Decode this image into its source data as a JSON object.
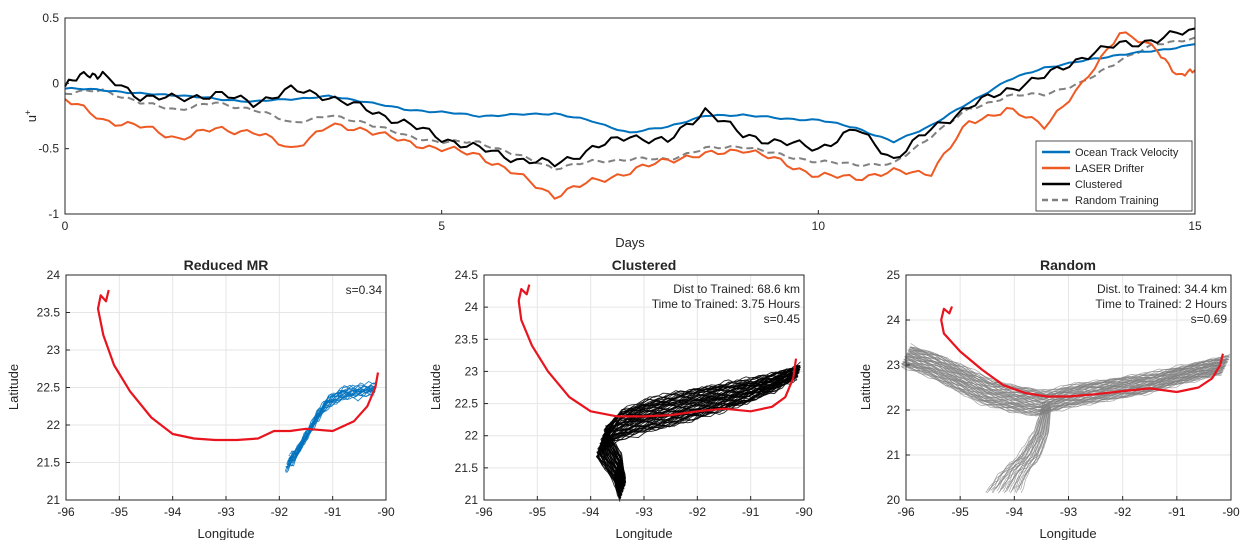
{
  "chart_data": [
    {
      "type": "line",
      "xlabel": "Days",
      "ylabel": "u",
      "ylabel_sup": "+",
      "xlim": [
        0,
        15
      ],
      "ylim": [
        -1,
        0.5
      ],
      "xticks": [
        0,
        5,
        10,
        15
      ],
      "yticks": [
        -1,
        -0.5,
        0,
        0.5
      ],
      "grid": false,
      "legend_position": "bottom-right",
      "series": [
        {
          "name": "Ocean Track Velocity",
          "color": "#0072BD",
          "dash": "solid",
          "points": [
            [
              0,
              -0.04
            ],
            [
              0.5,
              -0.05
            ],
            [
              1,
              -0.08
            ],
            [
              1.5,
              -0.09
            ],
            [
              2,
              -0.12
            ],
            [
              2.5,
              -0.14
            ],
            [
              3,
              -0.12
            ],
            [
              3.5,
              -0.1
            ],
            [
              4,
              -0.14
            ],
            [
              4.5,
              -0.2
            ],
            [
              5,
              -0.22
            ],
            [
              5.5,
              -0.25
            ],
            [
              6,
              -0.24
            ],
            [
              6.5,
              -0.23
            ],
            [
              7,
              -0.29
            ],
            [
              7.5,
              -0.38
            ],
            [
              8,
              -0.33
            ],
            [
              8.5,
              -0.25
            ],
            [
              9,
              -0.24
            ],
            [
              9.5,
              -0.27
            ],
            [
              10,
              -0.28
            ],
            [
              10.5,
              -0.34
            ],
            [
              11,
              -0.45
            ],
            [
              11.5,
              -0.32
            ],
            [
              12,
              -0.15
            ],
            [
              12.5,
              0.02
            ],
            [
              13,
              0.12
            ],
            [
              13.5,
              0.17
            ],
            [
              14,
              0.22
            ],
            [
              14.5,
              0.25
            ],
            [
              15,
              0.3
            ]
          ]
        },
        {
          "name": "LASER Drifter",
          "color": "#EE5A24",
          "dash": "solid",
          "points": [
            [
              0,
              -0.12
            ],
            [
              0.5,
              -0.28
            ],
            [
              1,
              -0.33
            ],
            [
              1.5,
              -0.42
            ],
            [
              2,
              -0.35
            ],
            [
              2.5,
              -0.37
            ],
            [
              3,
              -0.5
            ],
            [
              3.5,
              -0.33
            ],
            [
              4,
              -0.35
            ],
            [
              4.5,
              -0.45
            ],
            [
              5,
              -0.5
            ],
            [
              5.5,
              -0.55
            ],
            [
              6,
              -0.7
            ],
            [
              6.5,
              -0.86
            ],
            [
              7,
              -0.75
            ],
            [
              7.5,
              -0.68
            ],
            [
              8,
              -0.58
            ],
            [
              8.5,
              -0.55
            ],
            [
              9,
              -0.5
            ],
            [
              9.5,
              -0.6
            ],
            [
              10,
              -0.71
            ],
            [
              10.5,
              -0.72
            ],
            [
              11,
              -0.68
            ],
            [
              11.5,
              -0.68
            ],
            [
              12,
              -0.3
            ],
            [
              12.5,
              -0.2
            ],
            [
              13,
              -0.32
            ],
            [
              13.5,
              -0.02
            ],
            [
              14,
              0.4
            ],
            [
              14.5,
              0.25
            ],
            [
              14.8,
              0.05
            ],
            [
              15,
              0.1
            ]
          ]
        },
        {
          "name": "Clustered",
          "color": "#000000",
          "dash": "solid",
          "points": [
            [
              0,
              -0.02
            ],
            [
              0.3,
              0.08
            ],
            [
              0.5,
              0.05
            ],
            [
              1,
              -0.1
            ],
            [
              1.5,
              -0.12
            ],
            [
              2,
              -0.08
            ],
            [
              2.5,
              -0.15
            ],
            [
              3,
              -0.05
            ],
            [
              3.5,
              -0.1
            ],
            [
              4,
              -0.2
            ],
            [
              4.5,
              -0.3
            ],
            [
              5,
              -0.42
            ],
            [
              5.5,
              -0.5
            ],
            [
              6,
              -0.58
            ],
            [
              6.5,
              -0.62
            ],
            [
              7,
              -0.5
            ],
            [
              7.5,
              -0.4
            ],
            [
              8,
              -0.45
            ],
            [
              8.5,
              -0.2
            ],
            [
              9,
              -0.4
            ],
            [
              9.5,
              -0.45
            ],
            [
              10,
              -0.5
            ],
            [
              10.5,
              -0.35
            ],
            [
              11,
              -0.58
            ],
            [
              11.5,
              -0.35
            ],
            [
              12,
              -0.18
            ],
            [
              12.5,
              -0.05
            ],
            [
              13,
              0.05
            ],
            [
              13.5,
              0.2
            ],
            [
              14,
              0.3
            ],
            [
              14.5,
              0.33
            ],
            [
              15,
              0.42
            ]
          ]
        },
        {
          "name": "Random Training",
          "color": "#808080",
          "dash": "dashed",
          "points": [
            [
              0,
              -0.08
            ],
            [
              0.5,
              -0.05
            ],
            [
              1,
              -0.15
            ],
            [
              1.5,
              -0.2
            ],
            [
              2,
              -0.15
            ],
            [
              2.5,
              -0.2
            ],
            [
              3,
              -0.3
            ],
            [
              3.5,
              -0.25
            ],
            [
              4,
              -0.3
            ],
            [
              4.5,
              -0.4
            ],
            [
              5,
              -0.45
            ],
            [
              5.5,
              -0.45
            ],
            [
              6,
              -0.55
            ],
            [
              6.5,
              -0.65
            ],
            [
              7,
              -0.6
            ],
            [
              7.5,
              -0.58
            ],
            [
              8,
              -0.58
            ],
            [
              8.5,
              -0.5
            ],
            [
              9,
              -0.48
            ],
            [
              9.5,
              -0.55
            ],
            [
              10,
              -0.6
            ],
            [
              10.5,
              -0.62
            ],
            [
              11,
              -0.62
            ],
            [
              11.5,
              -0.4
            ],
            [
              12,
              -0.2
            ],
            [
              12.5,
              -0.1
            ],
            [
              13,
              -0.08
            ],
            [
              13.5,
              0.0
            ],
            [
              14,
              0.18
            ],
            [
              14.5,
              0.3
            ],
            [
              15,
              0.35
            ]
          ]
        }
      ]
    },
    {
      "type": "line",
      "title": "Reduced MR",
      "xlabel": "Longitude",
      "ylabel": "Latitude",
      "xlim": [
        -96,
        -90
      ],
      "ylim": [
        21,
        24
      ],
      "xticks": [
        -96,
        -95,
        -94,
        -93,
        -92,
        -91,
        -90
      ],
      "yticks": [
        21,
        21.5,
        22,
        22.5,
        23,
        23.5,
        24
      ],
      "grid": true,
      "annotations": [
        "s=0.34"
      ],
      "ensemble": {
        "color": "#0072BD",
        "count": 18,
        "start": [
          -91.85,
          21.48
        ],
        "spread": [
          0.15,
          0.1
        ]
      },
      "ensemble_centerline": [
        [
          -91.85,
          21.48
        ],
        [
          -91.7,
          21.6
        ],
        [
          -91.5,
          21.85
        ],
        [
          -91.3,
          22.1
        ],
        [
          -91.1,
          22.3
        ],
        [
          -90.8,
          22.42
        ],
        [
          -90.5,
          22.45
        ],
        [
          -90.2,
          22.48
        ]
      ],
      "red_track": [
        [
          -95.2,
          23.8
        ],
        [
          -95.25,
          23.65
        ],
        [
          -95.35,
          23.73
        ],
        [
          -95.4,
          23.55
        ],
        [
          -95.3,
          23.2
        ],
        [
          -95.1,
          22.8
        ],
        [
          -94.8,
          22.45
        ],
        [
          -94.4,
          22.1
        ],
        [
          -94.0,
          21.88
        ],
        [
          -93.6,
          21.82
        ],
        [
          -93.2,
          21.8
        ],
        [
          -92.8,
          21.8
        ],
        [
          -92.4,
          21.82
        ],
        [
          -92.1,
          21.92
        ],
        [
          -91.8,
          21.92
        ],
        [
          -91.5,
          21.95
        ],
        [
          -91.0,
          21.92
        ],
        [
          -90.6,
          22.05
        ],
        [
          -90.35,
          22.25
        ],
        [
          -90.2,
          22.5
        ],
        [
          -90.15,
          22.7
        ]
      ]
    },
    {
      "type": "line",
      "title": "Clustered",
      "xlabel": "Longitude",
      "ylabel": "Latitude",
      "xlim": [
        -96,
        -90
      ],
      "ylim": [
        21,
        24.5
      ],
      "xticks": [
        -96,
        -95,
        -94,
        -93,
        -92,
        -91,
        -90
      ],
      "yticks": [
        21,
        21.5,
        22,
        22.5,
        23,
        23.5,
        24,
        24.5
      ],
      "grid": true,
      "annotations": [
        "Dist to Trained: 68.6 km",
        "Time to Trained: 3.75 Hours",
        "s=0.45"
      ],
      "ensemble": {
        "color": "#000000",
        "count": 60
      },
      "ensemble_centerline": [
        [
          -90.1,
          23.0
        ],
        [
          -90.5,
          22.85
        ],
        [
          -91.0,
          22.7
        ],
        [
          -91.5,
          22.6
        ],
        [
          -92.0,
          22.5
        ],
        [
          -92.5,
          22.4
        ],
        [
          -93.0,
          22.3
        ],
        [
          -93.5,
          22.15
        ],
        [
          -93.8,
          21.9
        ],
        [
          -93.5,
          21.5
        ],
        [
          -93.4,
          21.15
        ]
      ],
      "red_track": [
        [
          -95.15,
          24.35
        ],
        [
          -95.2,
          24.2
        ],
        [
          -95.3,
          24.28
        ],
        [
          -95.35,
          24.1
        ],
        [
          -95.3,
          23.8
        ],
        [
          -95.1,
          23.4
        ],
        [
          -94.8,
          23.0
        ],
        [
          -94.4,
          22.6
        ],
        [
          -94.0,
          22.38
        ],
        [
          -93.5,
          22.3
        ],
        [
          -93.0,
          22.3
        ],
        [
          -92.5,
          22.32
        ],
        [
          -92.0,
          22.38
        ],
        [
          -91.5,
          22.42
        ],
        [
          -91.0,
          22.38
        ],
        [
          -90.6,
          22.45
        ],
        [
          -90.35,
          22.6
        ],
        [
          -90.2,
          22.9
        ],
        [
          -90.15,
          23.2
        ]
      ]
    },
    {
      "type": "line",
      "title": "Random",
      "xlabel": "Longitude",
      "ylabel": "Latitude",
      "xlim": [
        -96,
        -90
      ],
      "ylim": [
        20,
        25
      ],
      "xticks": [
        -96,
        -95,
        -94,
        -93,
        -92,
        -91,
        -90
      ],
      "yticks": [
        20,
        21,
        22,
        23,
        24,
        25
      ],
      "grid": true,
      "annotations": [
        "Dist. to Trained: 34.4 km",
        "Time to Trained: 2 Hours",
        "s=0.69"
      ],
      "ensemble": {
        "color": "#808080",
        "count": 60
      },
      "ensemble_centerline": [
        [
          -96.0,
          23.2
        ],
        [
          -95.5,
          23.0
        ],
        [
          -95.0,
          22.7
        ],
        [
          -94.5,
          22.4
        ],
        [
          -94.0,
          22.25
        ],
        [
          -93.5,
          22.15
        ],
        [
          -93.0,
          22.3
        ],
        [
          -92.5,
          22.4
        ],
        [
          -92.0,
          22.5
        ],
        [
          -91.5,
          22.6
        ],
        [
          -91.0,
          22.75
        ],
        [
          -90.5,
          22.9
        ],
        [
          -90.1,
          23.0
        ]
      ],
      "ensemble_branch": [
        [
          -93.4,
          22.1
        ],
        [
          -93.5,
          21.5
        ],
        [
          -93.7,
          21.0
        ],
        [
          -94.0,
          20.6
        ],
        [
          -94.2,
          20.2
        ]
      ],
      "red_track": [
        [
          -95.15,
          24.3
        ],
        [
          -95.2,
          24.15
        ],
        [
          -95.3,
          24.25
        ],
        [
          -95.35,
          24.0
        ],
        [
          -95.3,
          23.7
        ],
        [
          -95.0,
          23.3
        ],
        [
          -94.6,
          22.9
        ],
        [
          -94.2,
          22.55
        ],
        [
          -93.8,
          22.38
        ],
        [
          -93.4,
          22.3
        ],
        [
          -93.0,
          22.3
        ],
        [
          -92.5,
          22.35
        ],
        [
          -92.0,
          22.42
        ],
        [
          -91.5,
          22.48
        ],
        [
          -91.0,
          22.4
        ],
        [
          -90.6,
          22.5
        ],
        [
          -90.35,
          22.7
        ],
        [
          -90.2,
          23.0
        ],
        [
          -90.15,
          23.25
        ]
      ]
    }
  ]
}
